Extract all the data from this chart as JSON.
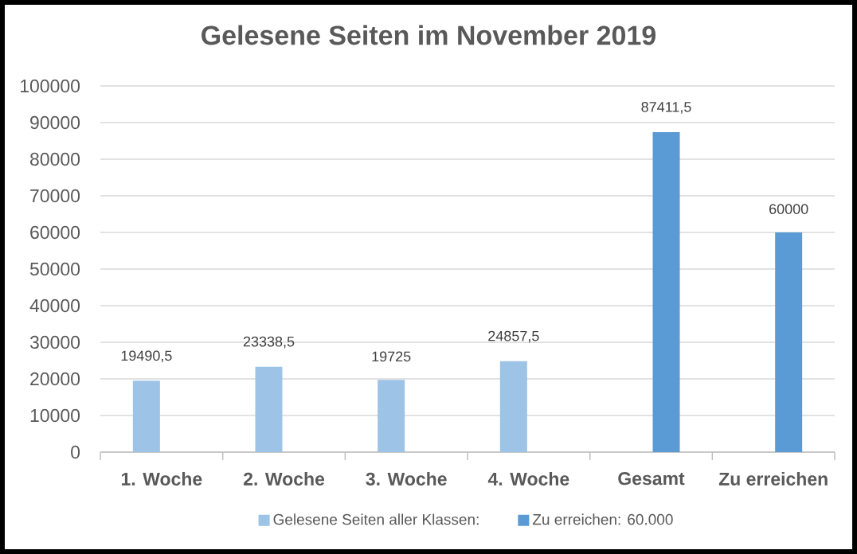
{
  "chart_data": {
    "type": "bar",
    "title": "Gelesene Seiten im November 2019",
    "categories": [
      "1. Woche",
      "2. Woche",
      "3. Woche",
      "4. Woche",
      "Gesamt",
      "Zu erreichen"
    ],
    "series": [
      {
        "name": "Gelesene Seiten aller Klassen:",
        "color": "#9dc3e6",
        "values": [
          19490.5,
          23338.5,
          19725,
          24857.5,
          null,
          null
        ],
        "value_labels": [
          "19490,5",
          "23338,5",
          "19725",
          "24857,5",
          null,
          null
        ]
      },
      {
        "name": "Zu erreichen: 60.000",
        "color": "#5b9bd5",
        "values": [
          null,
          null,
          null,
          null,
          87411.5,
          60000
        ],
        "value_labels": [
          null,
          null,
          null,
          null,
          "87411,5",
          "60000"
        ]
      }
    ],
    "ylim": [
      0,
      100000
    ],
    "yticks": [
      0,
      10000,
      20000,
      30000,
      40000,
      50000,
      60000,
      70000,
      80000,
      90000,
      100000
    ],
    "grid": "y",
    "legend": "bottom"
  }
}
